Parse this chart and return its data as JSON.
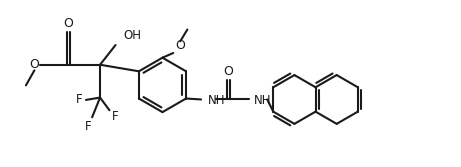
{
  "background_color": "#ffffff",
  "line_color": "#1a1a1a",
  "line_width": 1.5,
  "font_size": 8.5,
  "figsize": [
    4.61,
    1.67
  ],
  "dpi": 100,
  "xlim": [
    0,
    9.2
  ],
  "ylim": [
    0,
    3.5
  ]
}
